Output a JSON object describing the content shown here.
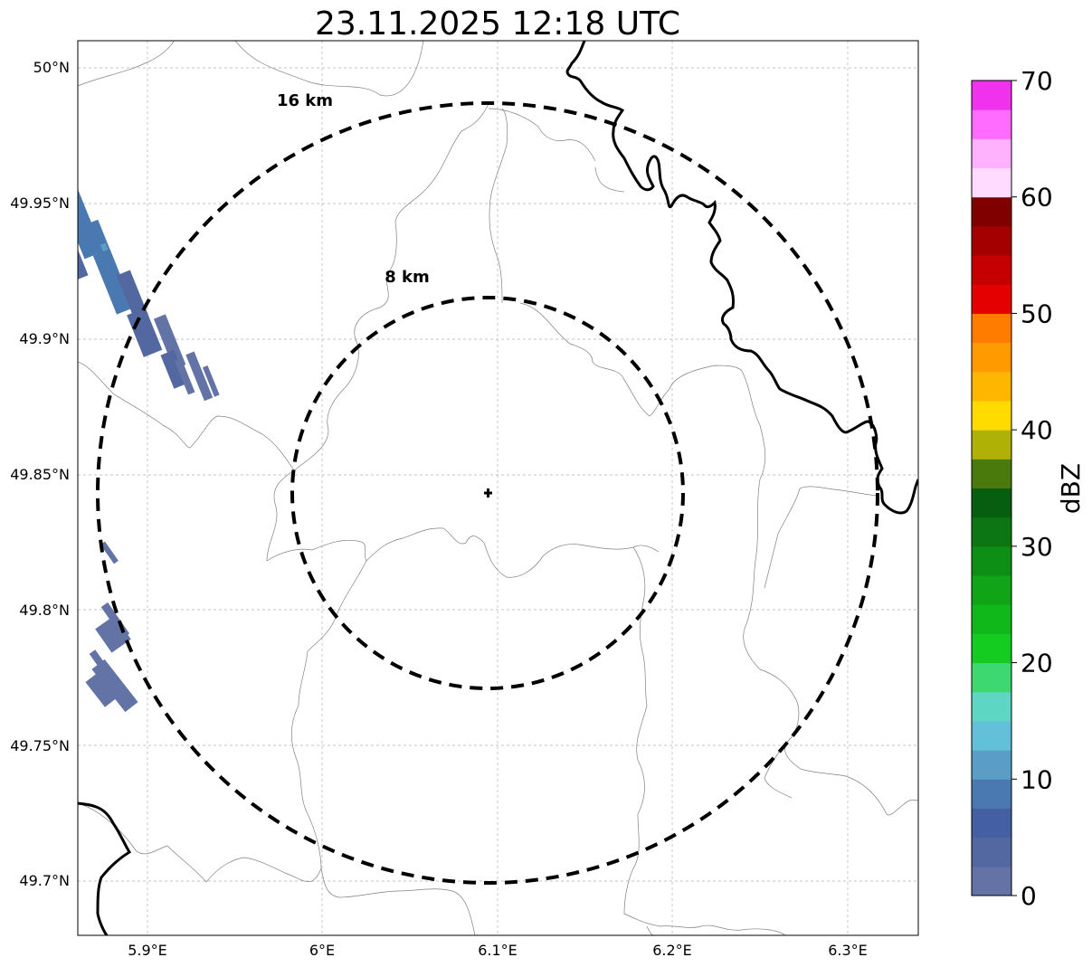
{
  "title": "23.11.2025 12:18 UTC",
  "map": {
    "x_ticks": [
      "5.9°E",
      "6°E",
      "6.1°E",
      "6.2°E",
      "6.3°E"
    ],
    "y_ticks": [
      "50°N",
      "49.95°N",
      "49.9°N",
      "49.85°N",
      "49.8°N",
      "49.75°N",
      "49.7°N"
    ],
    "rings": [
      {
        "label": "8 km",
        "radius_km": 8
      },
      {
        "label": "16 km",
        "radius_km": 16
      }
    ],
    "radar_site": {
      "lon": 6.095,
      "lat": 49.843
    }
  },
  "colorbar": {
    "label": "dBZ",
    "tick_labels": [
      "0",
      "10",
      "20",
      "30",
      "40",
      "50",
      "60",
      "70"
    ],
    "range": [
      0,
      70
    ],
    "step": 2.5,
    "colors": [
      "#6373a6",
      "#5367a0",
      "#4460a3",
      "#4a78b0",
      "#5a9ec8",
      "#62c0d8",
      "#5fd6c4",
      "#3dd86f",
      "#13cc1f",
      "#11b81a",
      "#0fa517",
      "#0d8e14",
      "#0b7612",
      "#075e10",
      "#4a7a0b",
      "#b0b107",
      "#ffdb00",
      "#ffb600",
      "#ff9b00",
      "#ff7c00",
      "#e50000",
      "#c60000",
      "#a50000",
      "#800000",
      "#ffdbff",
      "#ffb0ff",
      "#ff6cff",
      "#f032ef"
    ]
  },
  "icons": {
    "radar_marker": "plus-icon"
  }
}
